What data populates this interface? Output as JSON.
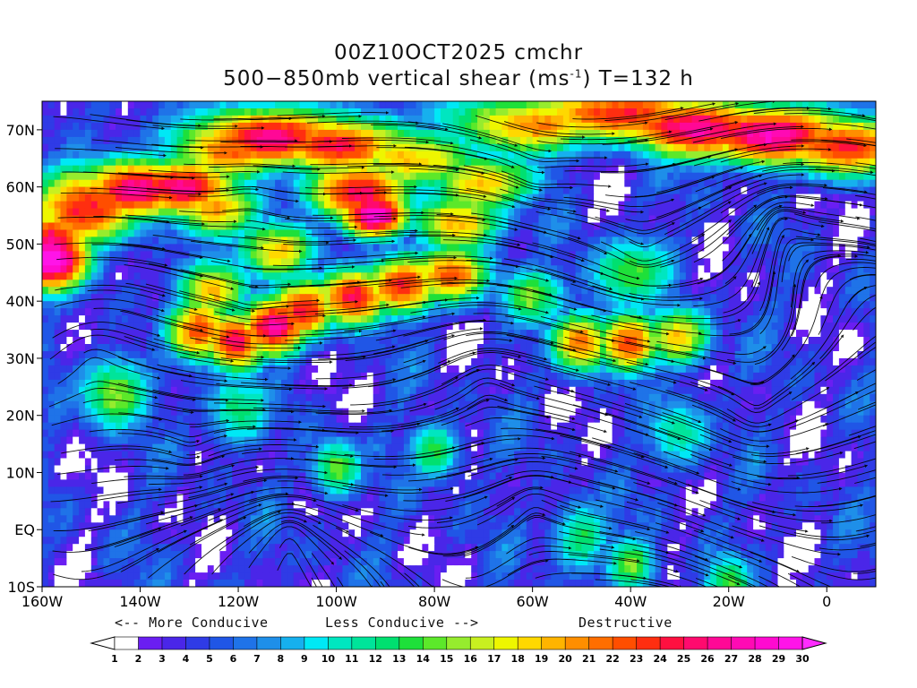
{
  "title": {
    "line1": "00Z10OCT2025 cmchr",
    "line2_prefix": "500−850mb vertical shear (ms",
    "line2_sup": "-1",
    "line2_suffix": ") T=132 h"
  },
  "map": {
    "lon_range": [
      -160,
      10
    ],
    "lat_range": [
      -10,
      75
    ],
    "lat_ticks": [
      {
        "lat": 70,
        "label": "70N"
      },
      {
        "lat": 60,
        "label": "60N"
      },
      {
        "lat": 50,
        "label": "50N"
      },
      {
        "lat": 40,
        "label": "40N"
      },
      {
        "lat": 30,
        "label": "30N"
      },
      {
        "lat": 20,
        "label": "20N"
      },
      {
        "lat": 10,
        "label": "10N"
      },
      {
        "lat": 0,
        "label": "EQ"
      },
      {
        "lat": -10,
        "label": "10S"
      }
    ],
    "lon_ticks": [
      {
        "lon": -160,
        "label": "160W"
      },
      {
        "lon": -140,
        "label": "140W"
      },
      {
        "lon": -120,
        "label": "120W"
      },
      {
        "lon": -100,
        "label": "100W"
      },
      {
        "lon": -80,
        "label": "80W"
      },
      {
        "lon": -60,
        "label": "60W"
      },
      {
        "lon": -40,
        "label": "40W"
      },
      {
        "lon": -20,
        "label": "20W"
      },
      {
        "lon": 0,
        "label": "0"
      }
    ]
  },
  "annotations": {
    "more_conducive": "<-- More Conducive",
    "less_conducive": "Less Conducive -->",
    "destructive": "Destructive"
  },
  "colorbar": {
    "labels": [
      "1",
      "2",
      "3",
      "4",
      "5",
      "6",
      "7",
      "8",
      "9",
      "10",
      "11",
      "12",
      "13",
      "14",
      "15",
      "16",
      "17",
      "18",
      "19",
      "20",
      "21",
      "22",
      "23",
      "24",
      "25",
      "26",
      "27",
      "28",
      "29",
      "30"
    ],
    "colors": [
      "#ffffff",
      "#6a1ef2",
      "#4a26e8",
      "#2f3be6",
      "#2056e6",
      "#1f73e8",
      "#1e8fe9",
      "#16b0ee",
      "#00e8f5",
      "#00e6c0",
      "#00e49a",
      "#00e070",
      "#1ee03a",
      "#5ce82a",
      "#96ec2e",
      "#c8f020",
      "#eef600",
      "#ffd800",
      "#ffb400",
      "#ff8e00",
      "#ff6e00",
      "#ff4e00",
      "#ff2e10",
      "#ff1040",
      "#ff0a6e",
      "#ff0896",
      "#ff0ab4",
      "#ff0ad0",
      "#ff14e8"
    ],
    "under_color": "#ffffff",
    "over_color": "#ff2cff"
  },
  "field": {
    "jets": [
      {
        "lat": 52,
        "lon": -158,
        "v": 24,
        "r": 4
      },
      {
        "lat": 48,
        "lon": -158,
        "v": 26,
        "r": 4
      },
      {
        "lat": 58,
        "lon": -150,
        "v": 22,
        "r": 5
      },
      {
        "lat": 61,
        "lon": -140,
        "v": 23,
        "r": 4
      },
      {
        "lat": 61,
        "lon": -130,
        "v": 22,
        "r": 4
      },
      {
        "lat": 57,
        "lon": -124,
        "v": 16,
        "r": 4
      },
      {
        "lat": 68,
        "lon": -120,
        "v": 20,
        "r": 4
      },
      {
        "lat": 70,
        "lon": -112,
        "v": 22,
        "r": 4
      },
      {
        "lat": 68,
        "lon": -98,
        "v": 21,
        "r": 4
      },
      {
        "lat": 60,
        "lon": -95,
        "v": 24,
        "r": 4
      },
      {
        "lat": 56,
        "lon": -92,
        "v": 25,
        "r": 3
      },
      {
        "lat": 50,
        "lon": -112,
        "v": 17,
        "r": 4
      },
      {
        "lat": 43,
        "lon": -125,
        "v": 18,
        "r": 4
      },
      {
        "lat": 36,
        "lon": -128,
        "v": 21,
        "r": 4
      },
      {
        "lat": 34,
        "lon": -120,
        "v": 23,
        "r": 4
      },
      {
        "lat": 37,
        "lon": -112,
        "v": 25,
        "r": 4
      },
      {
        "lat": 40,
        "lon": -106,
        "v": 21,
        "r": 4
      },
      {
        "lat": 42,
        "lon": -96,
        "v": 23,
        "r": 4
      },
      {
        "lat": 44,
        "lon": -86,
        "v": 22,
        "r": 4
      },
      {
        "lat": 46,
        "lon": -76,
        "v": 20,
        "r": 4
      },
      {
        "lat": 55,
        "lon": -75,
        "v": 18,
        "r": 4
      },
      {
        "lat": 62,
        "lon": -70,
        "v": 17,
        "r": 4
      },
      {
        "lat": 66,
        "lon": -84,
        "v": 16,
        "r": 4
      },
      {
        "lat": 72,
        "lon": -60,
        "v": 19,
        "r": 4
      },
      {
        "lat": 74,
        "lon": -40,
        "v": 21,
        "r": 4
      },
      {
        "lat": 71,
        "lon": -25,
        "v": 24,
        "r": 4
      },
      {
        "lat": 70,
        "lon": -10,
        "v": 24,
        "r": 4
      },
      {
        "lat": 68,
        "lon": 5,
        "v": 21,
        "r": 4
      },
      {
        "lat": 34,
        "lon": -50,
        "v": 20,
        "r": 4
      },
      {
        "lat": 34,
        "lon": -40,
        "v": 21,
        "r": 4
      },
      {
        "lat": 35,
        "lon": -30,
        "v": 17,
        "r": 4
      },
      {
        "lat": 42,
        "lon": -60,
        "v": 13,
        "r": 4
      },
      {
        "lat": 46,
        "lon": -40,
        "v": 12,
        "r": 5
      },
      {
        "lat": 25,
        "lon": -145,
        "v": 14,
        "r": 5
      },
      {
        "lat": 22,
        "lon": -120,
        "v": 11,
        "r": 5
      },
      {
        "lat": 15,
        "lon": -80,
        "v": 12,
        "r": 4
      },
      {
        "lat": 12,
        "lon": -100,
        "v": 13,
        "r": 4
      },
      {
        "lat": 18,
        "lon": -30,
        "v": 10,
        "r": 5
      },
      {
        "lat": 0,
        "lon": -50,
        "v": 11,
        "r": 5
      },
      {
        "lat": -5,
        "lon": -40,
        "v": 13,
        "r": 4
      },
      {
        "lat": -8,
        "lon": -20,
        "v": 12,
        "r": 4
      }
    ],
    "gyres": [
      {
        "lat": 39,
        "lon": -118,
        "s": 1
      },
      {
        "lat": 48,
        "lon": -38,
        "s": 1
      },
      {
        "lat": 58,
        "lon": -118,
        "s": -1
      },
      {
        "lat": 62,
        "lon": -60,
        "s": 1
      },
      {
        "lat": 30,
        "lon": -150,
        "s": -1
      },
      {
        "lat": 25,
        "lon": -70,
        "s": -1
      },
      {
        "lat": 14,
        "lon": -130,
        "s": 1
      },
      {
        "lat": 5,
        "lon": -60,
        "s": -1
      },
      {
        "lat": 20,
        "lon": -15,
        "s": 1
      },
      {
        "lat": 0,
        "lon": -110,
        "s": -1
      },
      {
        "lat": 55,
        "lon": -10,
        "s": -1
      }
    ]
  }
}
